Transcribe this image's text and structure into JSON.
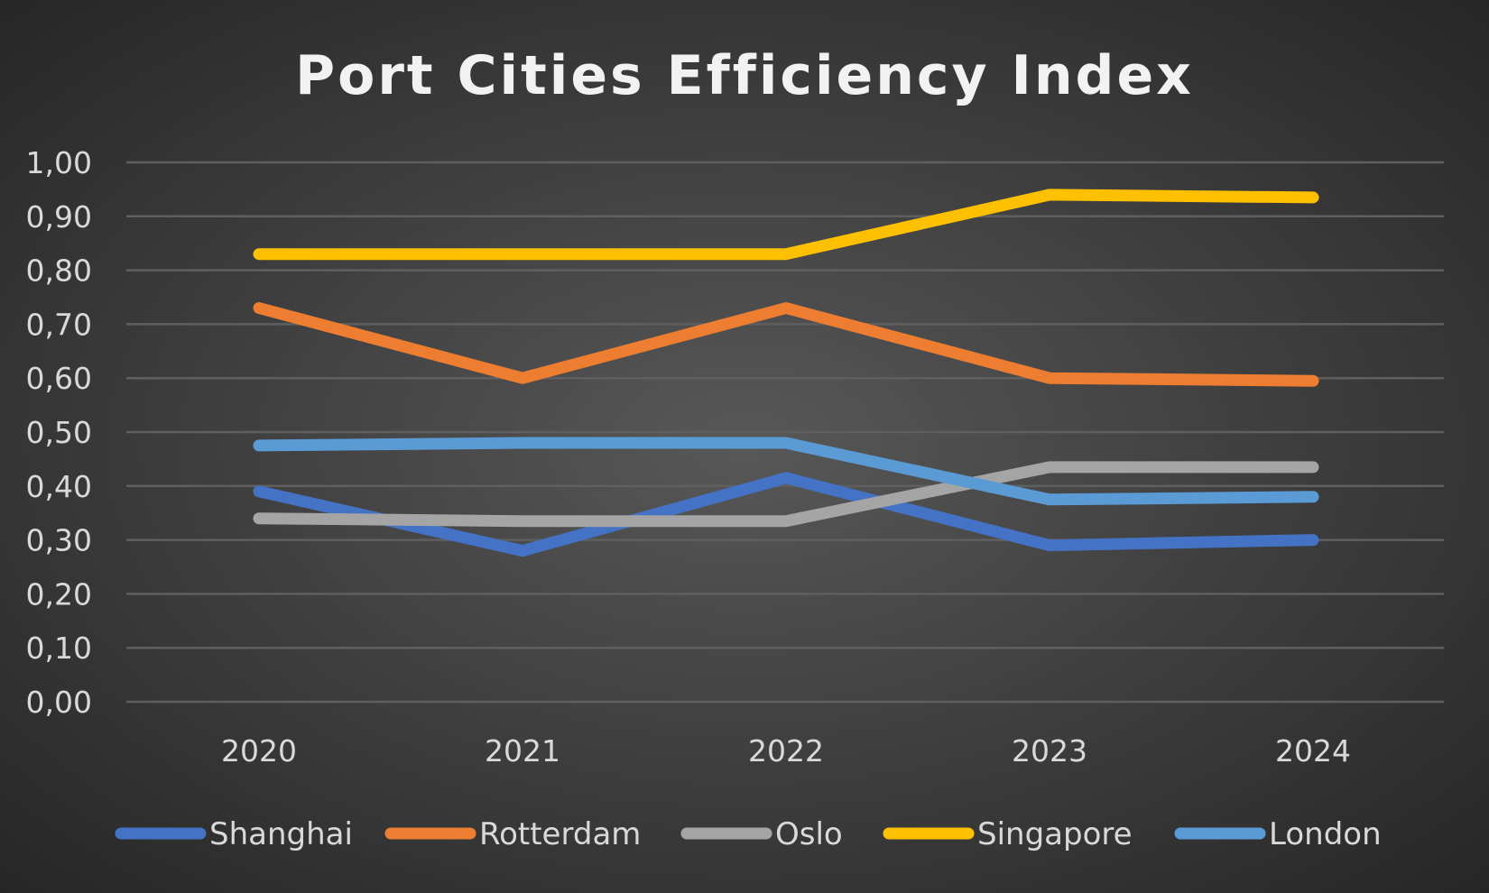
{
  "chart_data": {
    "type": "line",
    "title": "Port Cities Efficiency Index",
    "xlabel": "",
    "ylabel": "",
    "categories": [
      "2020",
      "2021",
      "2022",
      "2023",
      "2024"
    ],
    "ylim": [
      0,
      1
    ],
    "y_ticks": [
      "0,00",
      "0,10",
      "0,20",
      "0,30",
      "0,40",
      "0,50",
      "0,60",
      "0,70",
      "0,80",
      "0,90",
      "1,00"
    ],
    "grid": true,
    "legend_position": "bottom",
    "series": [
      {
        "name": "Shanghai",
        "color": "#4472c4",
        "values": [
          0.39,
          0.28,
          0.415,
          0.29,
          0.3
        ]
      },
      {
        "name": "Rotterdam",
        "color": "#ed7d31",
        "values": [
          0.73,
          0.6,
          0.73,
          0.6,
          0.595
        ]
      },
      {
        "name": "Oslo",
        "color": "#a5a5a5",
        "values": [
          0.34,
          0.335,
          0.335,
          0.435,
          0.435
        ]
      },
      {
        "name": "Singapore",
        "color": "#ffc000",
        "values": [
          0.83,
          0.83,
          0.83,
          0.94,
          0.935
        ]
      },
      {
        "name": "London",
        "color": "#5b9bd5",
        "values": [
          0.475,
          0.48,
          0.48,
          0.375,
          0.38
        ]
      }
    ]
  }
}
